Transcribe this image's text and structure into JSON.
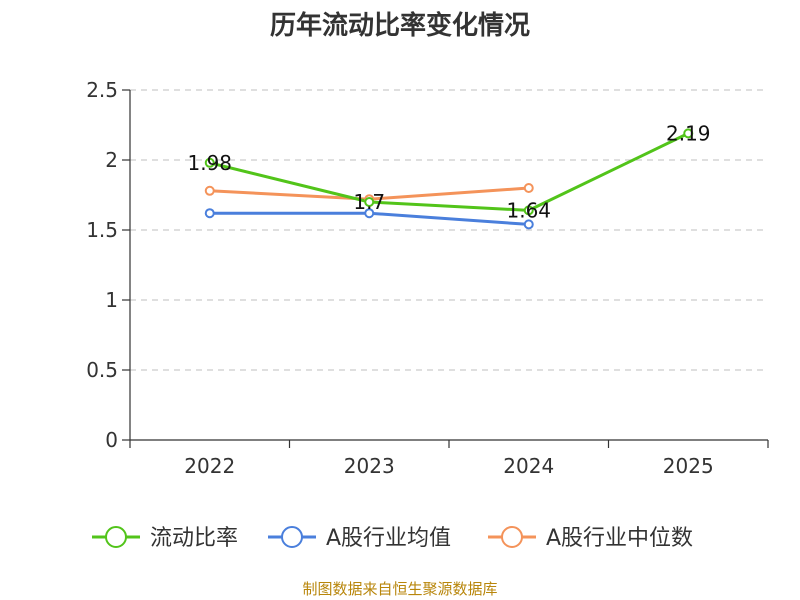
{
  "chart_data": {
    "type": "line",
    "title": "历年流动比率变化情况",
    "categories": [
      "2022",
      "2023",
      "2024",
      "2025"
    ],
    "ylim": [
      0,
      2.5
    ],
    "yticks": [
      "0",
      "0.5",
      "1",
      "1.5",
      "2",
      "2.5"
    ],
    "grid": true,
    "legend_position": "bottom",
    "series": [
      {
        "name": "流动比率",
        "color": "#52c41a",
        "values": [
          1.98,
          1.7,
          1.64,
          2.19
        ],
        "labels": [
          "1.98",
          "1.7",
          "1.64",
          "2.19"
        ]
      },
      {
        "name": "A股行业均值",
        "color": "#4a7fdc",
        "values": [
          1.62,
          1.62,
          1.54,
          null
        ],
        "labels": []
      },
      {
        "name": "A股行业中位数",
        "color": "#f4935a",
        "values": [
          1.78,
          1.72,
          1.8,
          null
        ],
        "labels": []
      }
    ],
    "source": "制图数据来自恒生聚源数据库"
  }
}
